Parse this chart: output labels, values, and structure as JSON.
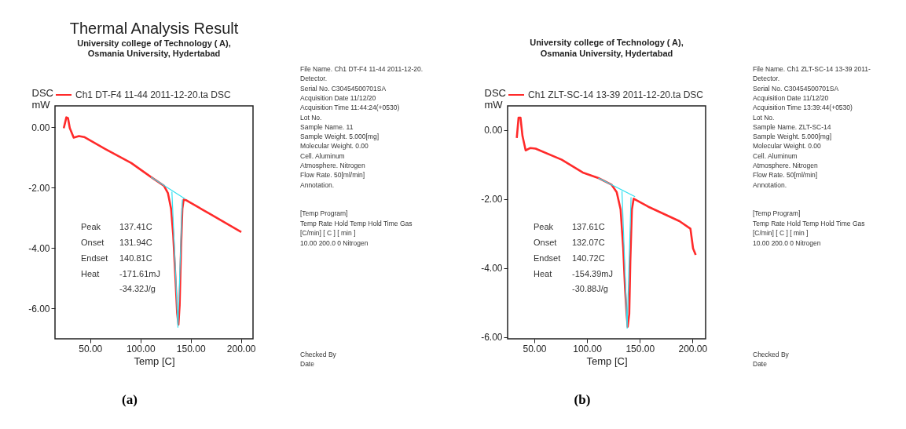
{
  "chart_data": [
    {
      "type": "line",
      "title": "Thermal Analysis Result",
      "subtitle": "University college of Technology ( A),\nOsmania University, Hydertabad",
      "xlabel": "Temp [C]",
      "ylabel": "DSC mW",
      "xlim": [
        15,
        212
      ],
      "ylim": [
        -7.0,
        0.7
      ],
      "xticks": [
        {
          "value": 50,
          "label": "50.00"
        },
        {
          "value": 100,
          "label": "100.00"
        },
        {
          "value": 150,
          "label": "150.00"
        },
        {
          "value": 200,
          "label": "200.00"
        }
      ],
      "yticks": [
        {
          "value": 0,
          "label": "0.00"
        },
        {
          "value": -2,
          "label": "-2.00"
        },
        {
          "value": -4,
          "label": "-4.00"
        },
        {
          "value": -6,
          "label": "-6.00"
        }
      ],
      "legend": "top",
      "line_style": "solid",
      "series": [
        {
          "name": "Ch1 DT-F4 11-44 2011-12-20.ta DSC",
          "color": "#ff2a2a",
          "x": [
            23.7,
            26.3,
            27.9,
            29.7,
            33.6,
            38.8,
            44,
            64.8,
            90.9,
            110.4,
            123.4,
            127.3,
            130.5,
            132.6,
            134.6,
            136.5,
            137.8,
            139,
            140.4,
            141.7,
            143,
            145.6,
            169,
            200.3
          ],
          "values": [
            -0.04,
            0.32,
            0.3,
            -0.03,
            -0.35,
            -0.3,
            -0.33,
            -0.72,
            -1.19,
            -1.65,
            -1.94,
            -2.18,
            -2.7,
            -3.56,
            -4.85,
            -6.15,
            -6.53,
            -5.89,
            -3.99,
            -2.7,
            -2.4,
            -2.42,
            -2.87,
            -3.47
          ]
        },
        {
          "color": "#33e0f0",
          "x": [
            110.4,
            144.3
          ],
          "values": [
            -1.65,
            -2.37
          ]
        },
        {
          "color": "#33e0f0",
          "x": [
            131.3,
            137.3,
            141.7
          ],
          "values": [
            -2.14,
            -6.62,
            -2.4
          ]
        }
      ],
      "annotations": [
        "Peak 137.41C",
        "Onset 131.94C",
        "Endset 140.81C",
        "Heat -171.61mJ",
        "-34.32J/g",
        "File Name.   Ch1 DT-F4 11-44 2011-12-20.",
        "Detector.",
        "Serial No.   C30454500701SA",
        "Acquisition Date   11/12/20",
        "Acquisition Time   11:44:24(+0530)",
        "Lot No.",
        "Sample Name.   11",
        "Sample Weight.   5.000[mg]",
        "Molecular Weight.   0.00",
        "Cell.   Aluminum",
        "Atmosphere.   Nitrogen",
        "Flow Rate.   50[ml/min]",
        "Annotation.",
        "[Temp Program]",
        "Temp Rate  Hold Temp  Hold Time   Gas",
        "[C/min]      [ C ]        [ min ]",
        "10.00          200.0          0              Nitrogen",
        "Checked By",
        "Date",
        "(a)"
      ]
    },
    {
      "type": "line",
      "subtitle": "University college of Technology ( A),\nOsmania University, Hydertabad",
      "xlabel": "Temp [C]",
      "ylabel": "DSC mW",
      "xlim": [
        24.7,
        212.4
      ],
      "ylim": [
        -6.05,
        0.7
      ],
      "xticks": [
        {
          "value": 50,
          "label": "50.00"
        },
        {
          "value": 100,
          "label": "100.00"
        },
        {
          "value": 150,
          "label": "150.00"
        },
        {
          "value": 200,
          "label": "200.00"
        }
      ],
      "yticks": [
        {
          "value": 0,
          "label": "0.00"
        },
        {
          "value": -2,
          "label": "-2.00"
        },
        {
          "value": -4,
          "label": "-4.00"
        },
        {
          "value": -6,
          "label": "-6.00"
        }
      ],
      "legend": "top",
      "line_style": "solid",
      "series": [
        {
          "name": "Ch1 ZLT-SC-14 13-39 2011-12-20.ta DSC",
          "color": "#ff2a2a",
          "x": [
            33.4,
            35.1,
            36.9,
            38.8,
            41.8,
            46.3,
            51.2,
            76,
            95.9,
            110.7,
            123.1,
            128.1,
            131.8,
            134.3,
            136,
            137.5,
            138.5,
            140,
            141,
            142.5,
            144.2,
            157.9,
            187.6,
            198,
            200.5,
            203
          ],
          "values": [
            -0.23,
            0.36,
            0.36,
            -0.17,
            -0.59,
            -0.52,
            -0.54,
            -0.86,
            -1.23,
            -1.39,
            -1.58,
            -1.8,
            -2.3,
            -3.43,
            -4.58,
            -5.33,
            -5.7,
            -5.33,
            -3.81,
            -2.3,
            -1.99,
            -2.22,
            -2.64,
            -2.86,
            -3.43,
            -3.62
          ]
        },
        {
          "color": "#33e0f0",
          "x": [
            110.7,
            145.5
          ],
          "values": [
            -1.39,
            -1.93
          ]
        },
        {
          "color": "#33e0f0",
          "x": [
            133.1,
            138,
            141.7
          ],
          "values": [
            -1.77,
            -5.74,
            -1.95
          ]
        }
      ],
      "annotations": [
        "Peak 137.61C",
        "Onset 132.07C",
        "Endset 140.72C",
        "Heat -154.39mJ",
        "-30.88J/g",
        "File Name.   Ch1 ZLT-SC-14 13-39 2011-",
        "Detector.",
        "Serial No.   C30454500701SA",
        "Acquisition Date   11/12/20",
        "Acquisition Time   13:39:44(+0530)",
        "Lot No.",
        "Sample Name.   ZLT-SC-14",
        "Sample Weight.   5.000[mg]",
        "Molecular Weight.   0.00",
        "Cell.   Aluminum",
        "Atmosphere.   Nitrogen",
        "Flow Rate.   50[ml/min]",
        "Annotation.",
        "[Temp Program]",
        "Temp Rate  Hold Temp  Hold Time   Gas",
        "[C/min]      [ C ]        [ min ]",
        "10.00          200.0          0              Nitrogen",
        "Checked By",
        "Date",
        "(b)"
      ]
    }
  ]
}
